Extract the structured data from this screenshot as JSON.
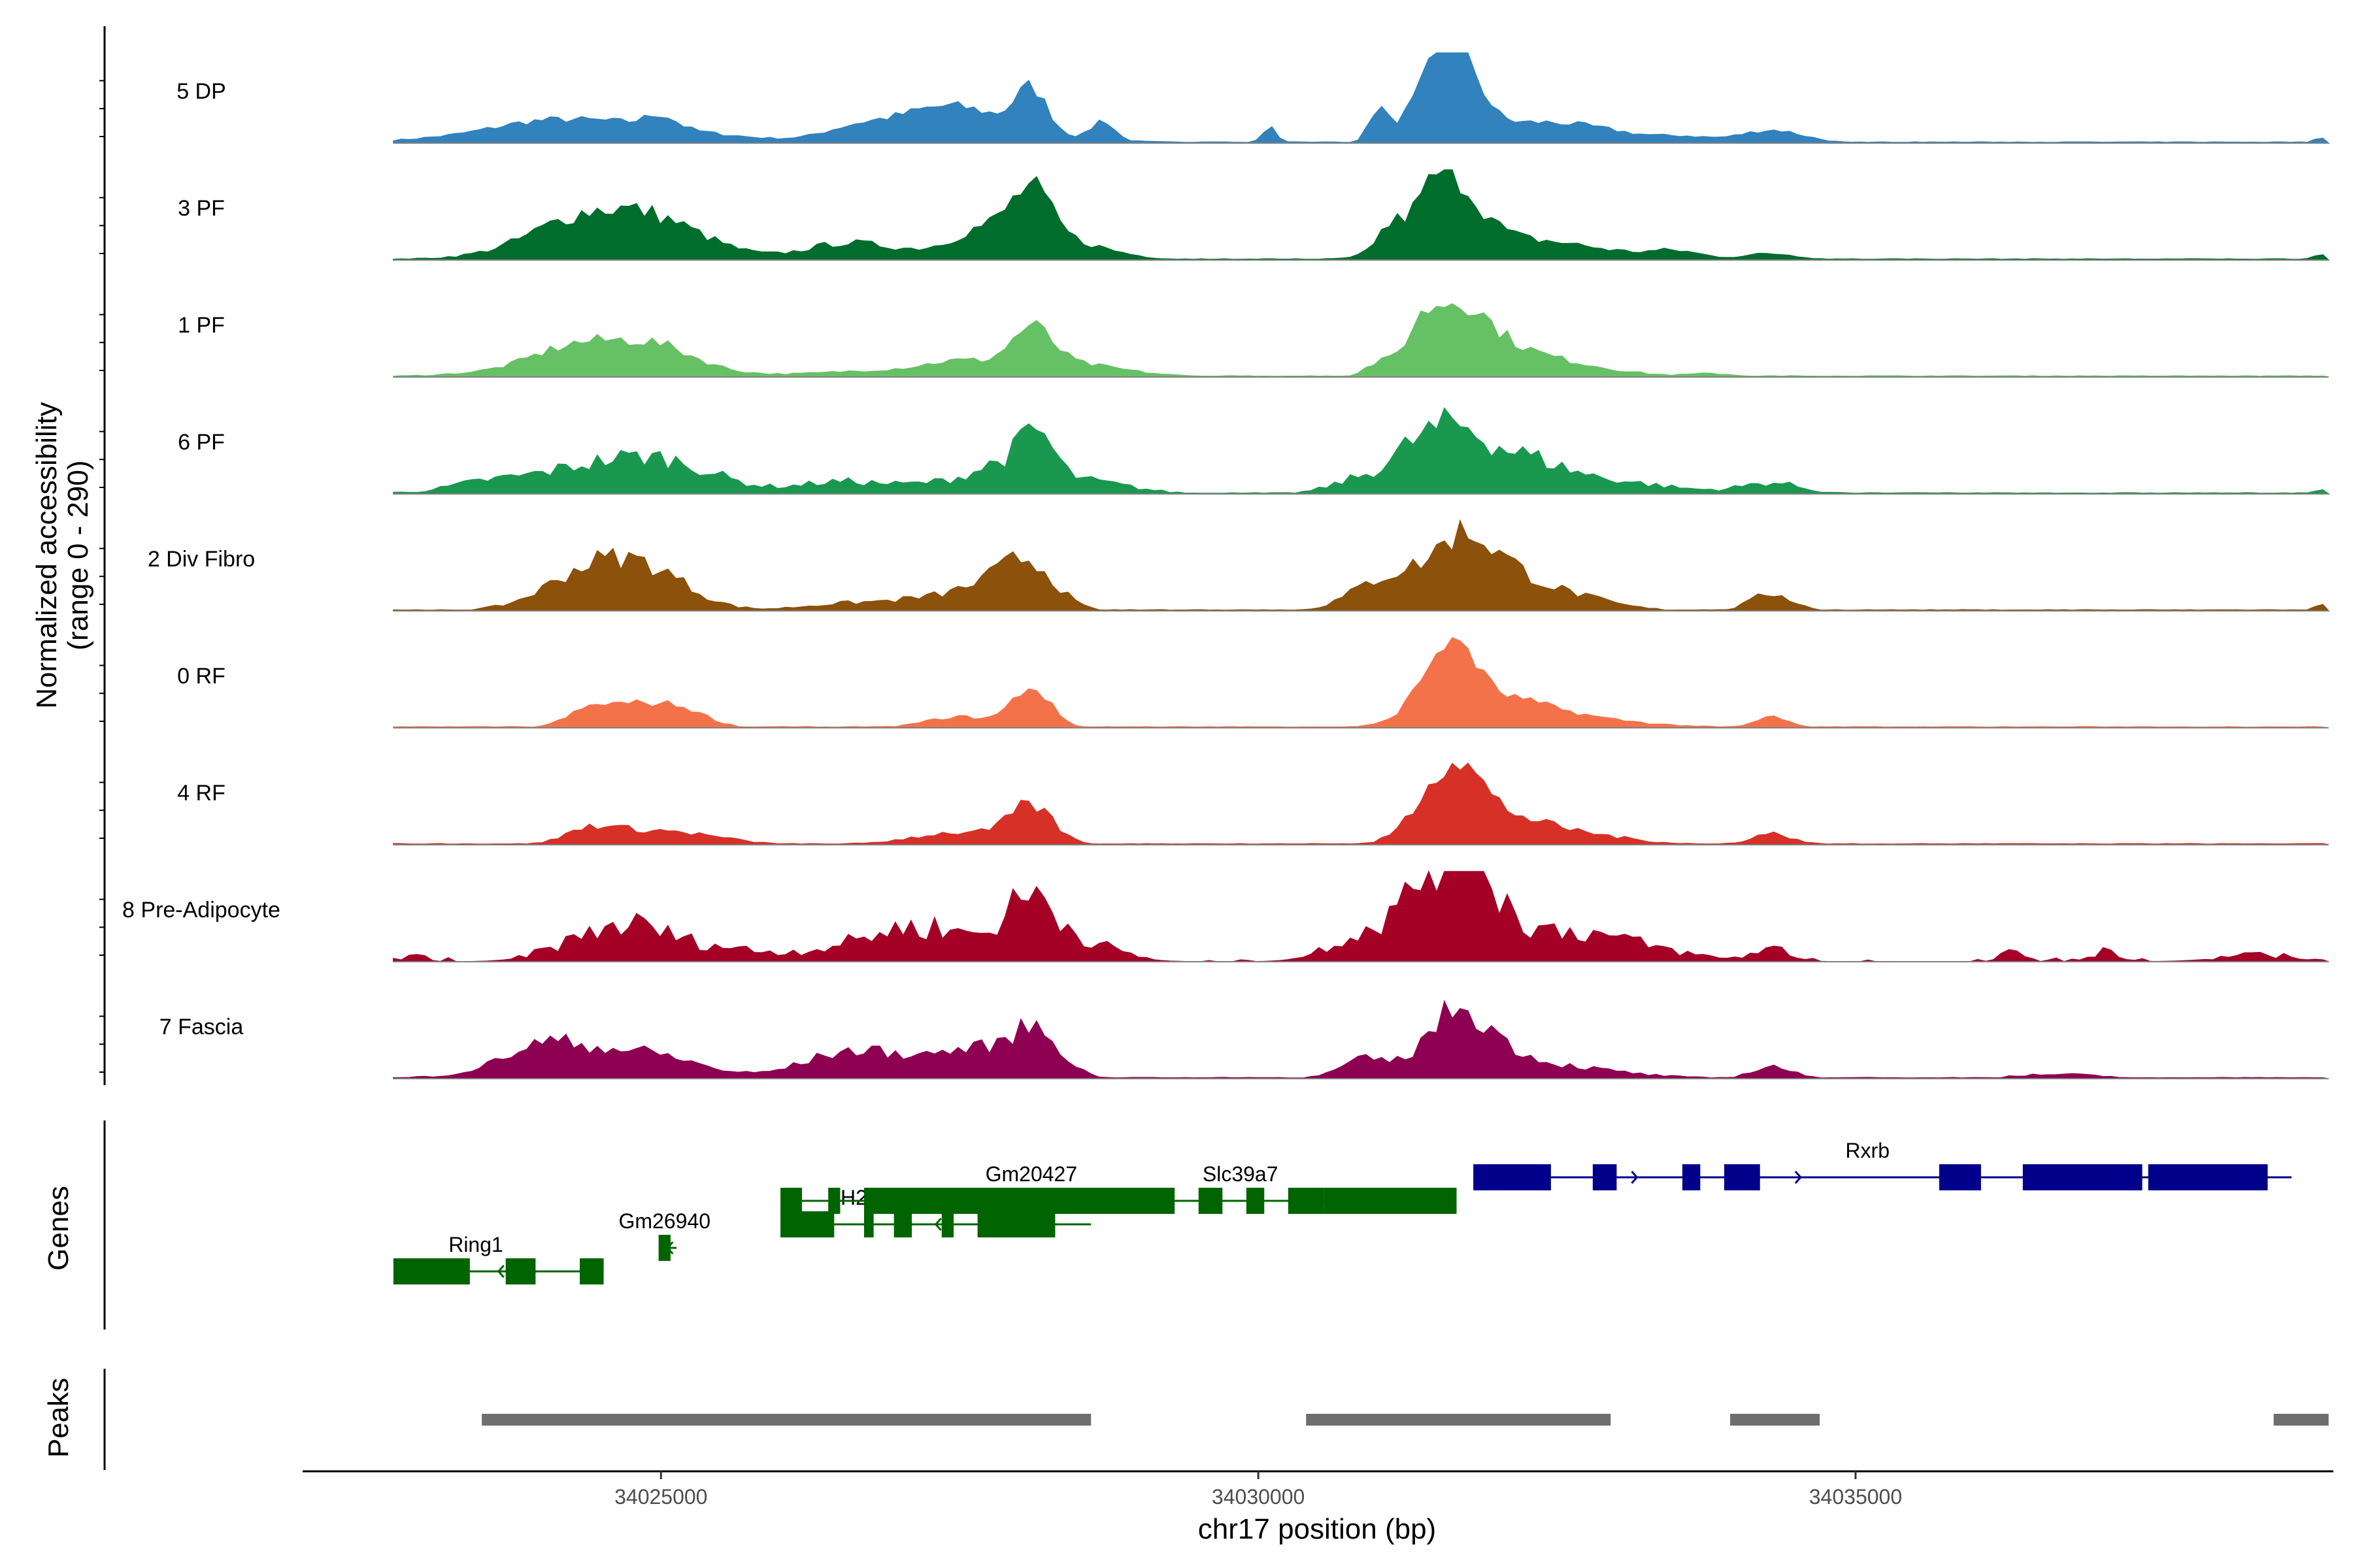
{
  "chart_data": {
    "type": "area",
    "title": "",
    "xlabel": "chr17 position (bp)",
    "ylabel_line1": "Normalized accessibility",
    "ylabel_line2": "(range 0 - 290)",
    "ylim": [
      0,
      290
    ],
    "xlim": [
      34022000,
      34039000
    ],
    "x_ticks": [
      34025000,
      34030000,
      34035000
    ],
    "x_tick_labels": [
      "34025000",
      "34030000",
      "34035000"
    ],
    "data_range": [
      34022760,
      34038960
    ],
    "baseline_color": "#808080",
    "tracks": [
      {
        "name": "5 DP",
        "color": "#3182BD",
        "noise": 0.05,
        "peaks": [
          [
            34023900,
            290,
            30
          ],
          [
            34024400,
            800,
            230
          ],
          [
            34025000,
            120,
            120
          ],
          [
            34026600,
            250,
            90
          ],
          [
            34027400,
            450,
            300
          ],
          [
            34027600,
            780,
            80
          ],
          [
            34028100,
            130,
            420
          ],
          [
            34028700,
            90,
            200
          ],
          [
            34030100,
            60,
            150
          ],
          [
            34031000,
            70,
            300
          ],
          [
            34031300,
            200,
            50
          ],
          [
            34031550,
            240,
            500
          ],
          [
            34031650,
            170,
            540
          ],
          [
            34032400,
            600,
            210
          ],
          [
            34033600,
            200,
            40
          ],
          [
            34034300,
            260,
            130
          ],
          [
            34038900,
            60,
            60
          ]
        ]
      },
      {
        "name": "3 PF",
        "color": "#006D2C",
        "noise": 0.07,
        "peaks": [
          [
            34024200,
            350,
            120
          ],
          [
            34024400,
            640,
            100
          ],
          [
            34024700,
            580,
            240
          ],
          [
            34024900,
            420,
            160
          ],
          [
            34026500,
            300,
            110
          ],
          [
            34027000,
            500,
            90
          ],
          [
            34027700,
            240,
            230
          ],
          [
            34028100,
            160,
            490
          ],
          [
            34028300,
            400,
            200
          ],
          [
            34031100,
            120,
            250
          ],
          [
            34031500,
            190,
            520
          ],
          [
            34031700,
            230,
            360
          ],
          [
            34032200,
            640,
            200
          ],
          [
            34033500,
            210,
            70
          ],
          [
            34034300,
            230,
            60
          ],
          [
            34038900,
            60,
            60
          ]
        ]
      },
      {
        "name": "1 PF",
        "color": "#66C164",
        "noise": 0.06,
        "peaks": [
          [
            34024200,
            300,
            100
          ],
          [
            34024400,
            680,
            120
          ],
          [
            34024700,
            470,
            180
          ],
          [
            34025000,
            300,
            100
          ],
          [
            34027000,
            600,
            70
          ],
          [
            34027500,
            260,
            100
          ],
          [
            34028100,
            170,
            390
          ],
          [
            34028400,
            450,
            130
          ],
          [
            34031000,
            110,
            120
          ],
          [
            34031350,
            140,
            330
          ],
          [
            34031650,
            220,
            520
          ],
          [
            34031900,
            300,
            200
          ],
          [
            34032300,
            520,
            180
          ],
          [
            34033800,
            180,
            30
          ]
        ]
      },
      {
        "name": "6 PF",
        "color": "#1A9850",
        "noise": 0.1,
        "peaks": [
          [
            34023500,
            260,
            50
          ],
          [
            34024400,
            720,
            100
          ],
          [
            34024600,
            600,
            180
          ],
          [
            34025100,
            400,
            140
          ],
          [
            34026500,
            350,
            110
          ],
          [
            34027500,
            410,
            120
          ],
          [
            34027850,
            200,
            180
          ],
          [
            34028150,
            140,
            440
          ],
          [
            34028500,
            380,
            130
          ],
          [
            34030900,
            250,
            150
          ],
          [
            34031300,
            180,
            320
          ],
          [
            34031650,
            210,
            460
          ],
          [
            34032100,
            320,
            240
          ],
          [
            34032500,
            700,
            170
          ],
          [
            34034300,
            240,
            100
          ],
          [
            34038900,
            60,
            60
          ]
        ]
      },
      {
        "name": "2 Div Fibro",
        "color": "#8C510A",
        "noise": 0.08,
        "peaks": [
          [
            34024400,
            380,
            260
          ],
          [
            34024700,
            430,
            250
          ],
          [
            34025000,
            300,
            140
          ],
          [
            34026500,
            350,
            60
          ],
          [
            34027300,
            380,
            120
          ],
          [
            34027800,
            260,
            200
          ],
          [
            34028100,
            210,
            390
          ],
          [
            34030900,
            230,
            140
          ],
          [
            34031300,
            280,
            340
          ],
          [
            34031700,
            200,
            480
          ],
          [
            34032000,
            240,
            300
          ],
          [
            34032400,
            420,
            200
          ],
          [
            34034300,
            170,
            170
          ],
          [
            34038900,
            60,
            50
          ]
        ]
      },
      {
        "name": "0 RF",
        "color": "#F4724A",
        "noise": 0.05,
        "peaks": [
          [
            34024400,
            190,
            160
          ],
          [
            34024800,
            250,
            210
          ],
          [
            34025200,
            210,
            150
          ],
          [
            34027500,
            270,
            110
          ],
          [
            34028100,
            160,
            400
          ],
          [
            34031400,
            170,
            250
          ],
          [
            34031650,
            170,
            620
          ],
          [
            34031950,
            380,
            190
          ],
          [
            34032300,
            650,
            140
          ],
          [
            34034300,
            130,
            110
          ]
        ]
      },
      {
        "name": "4 RF",
        "color": "#D73027",
        "noise": 0.07,
        "peaks": [
          [
            34024400,
            200,
            140
          ],
          [
            34024800,
            300,
            110
          ],
          [
            34025300,
            320,
            80
          ],
          [
            34027500,
            390,
            120
          ],
          [
            34028100,
            180,
            360
          ],
          [
            34031400,
            200,
            240
          ],
          [
            34031650,
            200,
            590
          ],
          [
            34031950,
            300,
            200
          ],
          [
            34032400,
            520,
            150
          ],
          [
            34034300,
            170,
            110
          ]
        ]
      },
      {
        "name": "8 Pre-Adipocyte",
        "color": "#A50026",
        "noise": 0.14,
        "sparse": true,
        "peaks": [
          [
            34022950,
            80,
            60
          ],
          [
            34024400,
            330,
            200
          ],
          [
            34024800,
            250,
            180
          ],
          [
            34025300,
            410,
            150
          ],
          [
            34026500,
            450,
            100
          ],
          [
            34027000,
            330,
            150
          ],
          [
            34027500,
            420,
            220
          ],
          [
            34028100,
            200,
            480
          ],
          [
            34028500,
            300,
            180
          ],
          [
            34030800,
            260,
            180
          ],
          [
            34031300,
            270,
            330
          ],
          [
            34031700,
            240,
            950
          ],
          [
            34032200,
            640,
            230
          ],
          [
            34032900,
            550,
            120
          ],
          [
            34034300,
            150,
            120
          ],
          [
            34036300,
            90,
            80
          ],
          [
            34037100,
            120,
            100
          ],
          [
            34038400,
            350,
            60
          ]
        ]
      },
      {
        "name": "7 Fascia",
        "color": "#8E0152",
        "noise": 0.08,
        "peaks": [
          [
            34024000,
            300,
            170
          ],
          [
            34024400,
            600,
            230
          ],
          [
            34025000,
            370,
            100
          ],
          [
            34026500,
            350,
            160
          ],
          [
            34027100,
            560,
            180
          ],
          [
            34027700,
            300,
            180
          ],
          [
            34028150,
            200,
            420
          ],
          [
            34030900,
            200,
            180
          ],
          [
            34031600,
            230,
            430
          ],
          [
            34031850,
            270,
            260
          ],
          [
            34032300,
            600,
            140
          ],
          [
            34034300,
            160,
            120
          ],
          [
            34036700,
            350,
            40
          ]
        ]
      }
    ],
    "genes_label": "Genes",
    "genes": [
      {
        "name": "Ring1",
        "color": "#006400",
        "strand": "-",
        "row": 3,
        "start": 34022760,
        "end": 34024520,
        "exons": [
          [
            34022760,
            34023400
          ],
          [
            34023700,
            34023950
          ],
          [
            34024320,
            34024520
          ]
        ],
        "label_x": 34023450
      },
      {
        "name": "Gm26940",
        "color": "#006400",
        "strand": "-",
        "row": 2,
        "start": 34024980,
        "end": 34025130,
        "exons": [
          [
            34024980,
            34025080
          ]
        ],
        "label_x": 34025030
      },
      {
        "name": "H2-Ke6",
        "color": "#006400",
        "strand": "-",
        "row": 1,
        "start": 34026000,
        "end": 34028600,
        "exons": [
          [
            34026000,
            34026450
          ],
          [
            34026700,
            34026780
          ],
          [
            34026950,
            34027100
          ],
          [
            34027350,
            34027450
          ],
          [
            34027650,
            34028300
          ]
        ],
        "label_x": 34026800
      },
      {
        "name": "Gm20427",
        "color": "#006400",
        "strand": "-",
        "row": 0,
        "start": 34026000,
        "end": 34029300,
        "exons": [
          [
            34026000,
            34026180
          ],
          [
            34026400,
            34026500
          ],
          [
            34026700,
            34029300
          ]
        ],
        "label_x": 34028100
      },
      {
        "name": "Slc39a7",
        "color": "#006400",
        "strand": "-",
        "row": 0,
        "start": 34029000,
        "end": 34031550,
        "exons": [
          [
            34029500,
            34029700
          ],
          [
            34029900,
            34030050
          ],
          [
            34030250,
            34030550
          ],
          [
            34030550,
            34030650
          ],
          [
            34030560,
            34031660
          ]
        ],
        "label_x": 34029850
      },
      {
        "name": "Rxrb",
        "color": "#00008B",
        "strand": "+",
        "row": -1,
        "start": 34031800,
        "end": 34038650,
        "exons": [
          [
            34031800,
            34032450
          ],
          [
            34032800,
            34033000
          ],
          [
            34033550,
            34033700
          ],
          [
            34033900,
            34034200
          ],
          [
            34035700,
            34036050
          ],
          [
            34036400,
            34037400
          ],
          [
            34037450,
            34038450
          ]
        ],
        "label_x": 34035100
      }
    ],
    "peaks_label": "Peaks",
    "peak_regions": [
      [
        34023500,
        34028600
      ],
      [
        34030400,
        34032950
      ],
      [
        34033950,
        34034700
      ],
      [
        34038500,
        34038960
      ]
    ],
    "peak_color": "#6E6E6E"
  }
}
